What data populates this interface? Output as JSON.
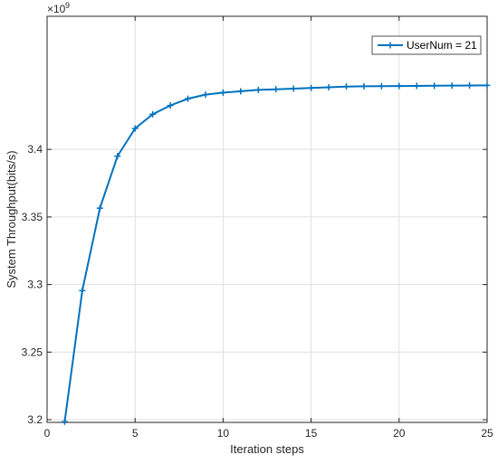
{
  "chart_data": {
    "type": "line",
    "title": "",
    "xlabel": "Iteration steps",
    "ylabel": "System Throughput(bits/s)",
    "y_exponent_label": "×10",
    "y_exponent_power": "9",
    "xlim": [
      0,
      25
    ],
    "ylim": [
      3.198,
      3.4985
    ],
    "x_ticks": [
      0,
      5,
      10,
      15,
      20,
      25
    ],
    "y_ticks": [
      3.2,
      3.25,
      3.3,
      3.35,
      3.4
    ],
    "x_tick_labels": [
      "0",
      "5",
      "10",
      "15",
      "20",
      "25"
    ],
    "y_tick_labels": [
      "3.2",
      "3.25",
      "3.3",
      "3.35",
      "3.4"
    ],
    "grid": true,
    "legend_position": "top-right",
    "series": [
      {
        "name": "UserNum = 21",
        "color": "#0072BD",
        "marker": "plus",
        "x": [
          1,
          2,
          3,
          4,
          5,
          6,
          7,
          8,
          9,
          10,
          11,
          12,
          13,
          14,
          15,
          16,
          17,
          18,
          19,
          20,
          21,
          22,
          23,
          24,
          25
        ],
        "y": [
          3.1985,
          3.2955,
          3.3565,
          3.395,
          3.4155,
          3.426,
          3.4325,
          3.4375,
          3.4405,
          3.442,
          3.443,
          3.444,
          3.4445,
          3.445,
          3.4455,
          3.446,
          3.4465,
          3.4467,
          3.4468,
          3.4469,
          3.447,
          3.4471,
          3.4472,
          3.4473,
          3.4474
        ]
      }
    ]
  }
}
